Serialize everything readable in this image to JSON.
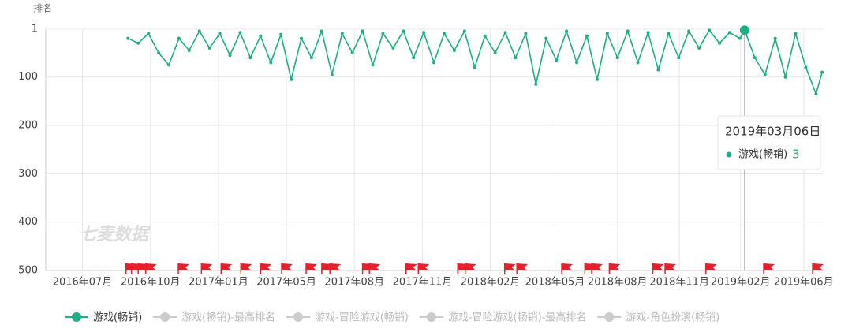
{
  "chart_data": {
    "type": "line",
    "y_axis_label": "排名",
    "watermark": "七麦数据",
    "y_inverted": true,
    "grid": true,
    "ylim": [
      1,
      500
    ],
    "yticks": [
      1,
      100,
      200,
      300,
      400,
      500
    ],
    "xlim": [
      "2016-05-12",
      "2019-06-29"
    ],
    "xticks": [
      {
        "value": "2016-07-05",
        "label": "2016年07月"
      },
      {
        "value": "2016-10-13",
        "label": "2016年10月"
      },
      {
        "value": "2017-01-21",
        "label": "2017年01月"
      },
      {
        "value": "2017-05-01",
        "label": "2017年05月"
      },
      {
        "value": "2017-08-09",
        "label": "2017年08月"
      },
      {
        "value": "2017-11-17",
        "label": "2017年11月"
      },
      {
        "value": "2018-02-25",
        "label": "2018年02月"
      },
      {
        "value": "2018-05-31",
        "label": "2018年05月"
      },
      {
        "value": "2018-08-31",
        "label": "2018年08月"
      },
      {
        "value": "2018-11-30",
        "label": "2018年11月"
      },
      {
        "value": "2019-02-28",
        "label": "2019年02月"
      },
      {
        "value": "2019-06-01",
        "label": "2019年06月"
      }
    ],
    "x": [
      "2016-09-10",
      "2016-09-25",
      "2016-10-10",
      "2016-10-25",
      "2016-11-09",
      "2016-11-24",
      "2016-12-09",
      "2016-12-24",
      "2017-01-08",
      "2017-01-23",
      "2017-02-07",
      "2017-02-22",
      "2017-03-09",
      "2017-03-24",
      "2017-04-08",
      "2017-04-23",
      "2017-05-08",
      "2017-05-23",
      "2017-06-07",
      "2017-06-22",
      "2017-07-07",
      "2017-07-22",
      "2017-08-06",
      "2017-08-21",
      "2017-09-05",
      "2017-09-20",
      "2017-10-05",
      "2017-10-20",
      "2017-11-04",
      "2017-11-19",
      "2017-12-04",
      "2017-12-19",
      "2018-01-03",
      "2018-01-18",
      "2018-02-02",
      "2018-02-17",
      "2018-03-04",
      "2018-03-19",
      "2018-04-03",
      "2018-04-18",
      "2018-05-03",
      "2018-05-18",
      "2018-06-02",
      "2018-06-17",
      "2018-07-02",
      "2018-07-17",
      "2018-08-01",
      "2018-08-16",
      "2018-08-31",
      "2018-09-15",
      "2018-09-30",
      "2018-10-15",
      "2018-10-30",
      "2018-11-14",
      "2018-11-29",
      "2018-12-14",
      "2018-12-29",
      "2019-01-13",
      "2019-01-28",
      "2019-02-12",
      "2019-02-27",
      "2019-03-06",
      "2019-03-21",
      "2019-04-05",
      "2019-04-20",
      "2019-05-05",
      "2019-05-20",
      "2019-06-04",
      "2019-06-19",
      "2019-06-28"
    ],
    "series": [
      {
        "name": "游戏(畅销)",
        "color": "#1fae87",
        "visible": true,
        "values": [
          20,
          30,
          10,
          50,
          75,
          20,
          45,
          5,
          40,
          10,
          55,
          8,
          60,
          15,
          70,
          12,
          105,
          20,
          60,
          5,
          95,
          10,
          50,
          5,
          75,
          10,
          40,
          5,
          60,
          8,
          70,
          10,
          45,
          5,
          80,
          15,
          50,
          8,
          60,
          10,
          115,
          20,
          65,
          5,
          70,
          15,
          105,
          10,
          60,
          5,
          70,
          8,
          85,
          10,
          60,
          5,
          40,
          3,
          30,
          8,
          20,
          3,
          60,
          95,
          20,
          100,
          10,
          80,
          135,
          90
        ]
      },
      {
        "name": "游戏(畅销)-最高排名",
        "color": "#cccccc",
        "visible": false
      },
      {
        "name": "游戏-冒险游戏(畅销)",
        "color": "#cccccc",
        "visible": false
      },
      {
        "name": "游戏-冒险游戏(畅销)-最高排名",
        "color": "#cccccc",
        "visible": false
      },
      {
        "name": "游戏-角色扮演(畅销)",
        "color": "#cccccc",
        "visible": false
      }
    ],
    "flags": [
      "2016-09-07",
      "2016-09-15",
      "2016-09-25",
      "2016-10-06",
      "2016-11-23",
      "2016-12-27",
      "2017-01-25",
      "2017-02-23",
      "2017-03-24",
      "2017-04-24",
      "2017-05-30",
      "2017-06-22",
      "2017-07-04",
      "2017-08-21",
      "2017-08-31",
      "2017-10-24",
      "2017-11-11",
      "2018-01-08",
      "2018-01-19",
      "2018-03-18",
      "2018-04-05",
      "2018-06-10",
      "2018-07-14",
      "2018-07-24",
      "2018-08-19",
      "2018-10-22",
      "2018-11-09",
      "2019-01-08",
      "2019-04-03",
      "2019-06-14"
    ],
    "flag_color": "#e8202a",
    "tooltip": {
      "title": "2019年03月06日"
    }
  }
}
